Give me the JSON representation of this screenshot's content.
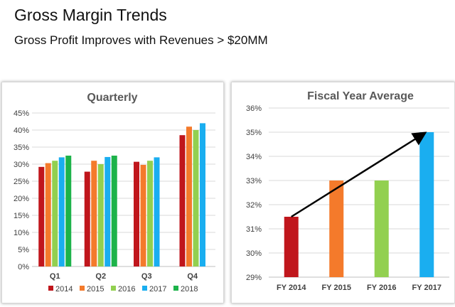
{
  "slide": {
    "title": "Gross Margin Trends",
    "subtitle": "Gross Profit Improves with Revenues > $20MM"
  },
  "colors": {
    "2014": "#c0161c",
    "2015": "#f47a2b",
    "2016": "#92d050",
    "2017": "#1aaef0",
    "2018": "#1db34a",
    "arrow": "#000000",
    "grid": "#d9d9d9"
  },
  "chart_data": [
    {
      "type": "bar",
      "title": "Quarterly",
      "categories": [
        "Q1",
        "Q2",
        "Q3",
        "Q4"
      ],
      "series": [
        {
          "name": "2014",
          "values": [
            29.2,
            27.8,
            30.7,
            38.5
          ]
        },
        {
          "name": "2015",
          "values": [
            30.3,
            31.0,
            29.8,
            41.0
          ]
        },
        {
          "name": "2016",
          "values": [
            31.0,
            30.0,
            31.0,
            40.0
          ]
        },
        {
          "name": "2017",
          "values": [
            32.0,
            32.1,
            32.0,
            42.0
          ]
        },
        {
          "name": "2018",
          "values": [
            32.5,
            32.5,
            null,
            null
          ]
        }
      ],
      "ylim": [
        0,
        45
      ],
      "yticks": [
        "0%",
        "5%",
        "10%",
        "15%",
        "20%",
        "25%",
        "30%",
        "35%",
        "40%",
        "45%"
      ],
      "grid": true,
      "legend": "bottom"
    },
    {
      "type": "bar",
      "title": "Fiscal Year Average",
      "categories": [
        "FY 2014",
        "FY 2015",
        "FY 2016",
        "FY 2017"
      ],
      "values": [
        31.5,
        33.0,
        33.0,
        35.0
      ],
      "bar_colors": [
        "#c0161c",
        "#f47a2b",
        "#92d050",
        "#1aaef0"
      ],
      "ylim": [
        29,
        36
      ],
      "yticks": [
        "29%",
        "30%",
        "31%",
        "32%",
        "33%",
        "34%",
        "35%",
        "36%"
      ],
      "grid": true,
      "annotation": "trend arrow from FY 2014 to FY 2017"
    }
  ]
}
